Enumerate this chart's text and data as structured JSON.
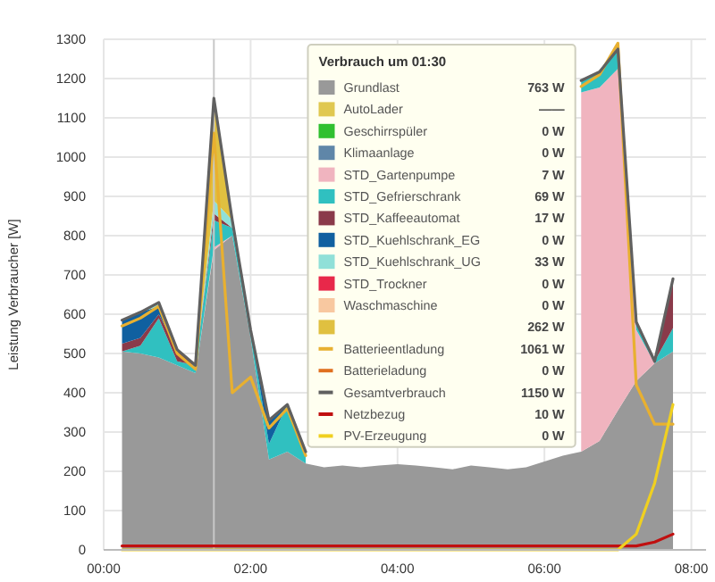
{
  "chart_data": {
    "type": "area",
    "stacked": true,
    "ylabel": "Leistung Verbraucher [W]",
    "x": [
      0.25,
      0.5,
      0.75,
      1,
      1.25,
      1.5,
      1.75,
      2,
      2.25,
      2.5,
      2.75,
      3,
      3.25,
      3.5,
      3.75,
      4,
      4.25,
      4.5,
      4.75,
      5,
      5.25,
      5.5,
      5.75,
      6,
      6.25,
      6.5,
      6.75,
      7,
      7.25,
      7.5,
      7.75
    ],
    "xlim": [
      0,
      8.2
    ],
    "xticks": [
      {
        "value": 0,
        "label": "00:00"
      },
      {
        "value": 2,
        "label": "02:00"
      },
      {
        "value": 4,
        "label": "04:00"
      },
      {
        "value": 6,
        "label": "06:00"
      },
      {
        "value": 8,
        "label": "08:00"
      }
    ],
    "ylim": [
      0,
      1300
    ],
    "yticks": [
      0,
      100,
      200,
      300,
      400,
      500,
      600,
      700,
      800,
      900,
      1000,
      1100,
      1200,
      1300
    ],
    "grid": true,
    "legend": "top right",
    "legend_title": "Verbrauch um 01:30",
    "ref_lines": [
      {
        "axis": "x",
        "value": 1.5,
        "color": "#c8c8c8"
      }
    ],
    "annotations": [
      "763 W",
      "——",
      "0 W",
      "0 W",
      "7 W",
      "69 W",
      "17 W",
      "0 W",
      "33 W",
      "0 W",
      "0 W",
      "262 W",
      "1061 W",
      "0 W",
      "1150 W",
      "10 W",
      "0 W"
    ],
    "series": [
      {
        "name": "Grundlast",
        "type": "area",
        "color": "#999999",
        "values": [
          505,
          500,
          490,
          470,
          450,
          763,
          800,
          540,
          230,
          250,
          220,
          210,
          215,
          210,
          215,
          218,
          215,
          210,
          205,
          215,
          210,
          205,
          210,
          225,
          240,
          250,
          277,
          355,
          430,
          475,
          505
        ]
      },
      {
        "name": "AutoLader",
        "type": "area",
        "color": "#e0c850",
        "values": [
          null,
          null,
          null,
          null,
          null,
          null,
          null,
          null,
          null,
          null,
          null,
          null,
          null,
          null,
          null,
          null,
          null,
          null,
          null,
          null,
          null,
          null,
          null,
          null,
          null,
          null,
          null,
          null,
          null,
          null,
          null
        ]
      },
      {
        "name": "Geschirrspüler",
        "type": "area",
        "color": "#30c030",
        "values": [
          null,
          null,
          null,
          null,
          null,
          null,
          null,
          null,
          null,
          null,
          null,
          null,
          null,
          null,
          null,
          null,
          null,
          null,
          null,
          null,
          null,
          null,
          null,
          null,
          null,
          null,
          null,
          null,
          null,
          null,
          null
        ]
      },
      {
        "name": "Klimaanlage",
        "type": "area",
        "color": "#5f86a8",
        "values": [
          null,
          null,
          null,
          null,
          null,
          null,
          null,
          null,
          null,
          null,
          null,
          null,
          null,
          null,
          null,
          null,
          null,
          null,
          null,
          null,
          null,
          null,
          null,
          null,
          null,
          null,
          null,
          null,
          null,
          null,
          null
        ]
      },
      {
        "name": "STD_Gartenpumpe",
        "type": "area",
        "color": "#f0b4bf",
        "values": [
          null,
          null,
          null,
          null,
          0,
          7,
          0,
          null,
          null,
          null,
          null,
          null,
          null,
          null,
          null,
          null,
          null,
          null,
          null,
          null,
          null,
          null,
          null,
          null,
          null,
          915,
          900,
          870,
          130,
          0,
          null
        ]
      },
      {
        "name": "STD_Gefrierschrank",
        "type": "area",
        "color": "#30c0c0",
        "values": [
          0,
          20,
          100,
          10,
          20,
          69,
          20,
          20,
          40,
          120,
          30,
          null,
          null,
          null,
          null,
          null,
          null,
          null,
          null,
          null,
          null,
          null,
          null,
          null,
          null,
          30,
          40,
          50,
          20,
          5,
          60
        ]
      },
      {
        "name": "STD_Kaffeeautomat",
        "type": "area",
        "color": "#8a3a4a",
        "values": [
          20,
          20,
          10,
          30,
          0,
          17,
          0,
          null,
          null,
          null,
          null,
          null,
          null,
          null,
          null,
          null,
          null,
          null,
          null,
          null,
          null,
          null,
          null,
          null,
          null,
          null,
          null,
          null,
          null,
          0,
          125
        ]
      },
      {
        "name": "STD_Kuehlschrank_EG",
        "type": "area",
        "color": "#1060a0",
        "values": [
          60,
          65,
          20,
          0,
          null,
          null,
          null,
          0,
          60,
          0,
          null,
          null,
          null,
          null,
          null,
          null,
          null,
          null,
          null,
          null,
          null,
          null,
          null,
          null,
          null,
          null,
          null,
          null,
          null,
          null,
          null
        ]
      },
      {
        "name": "STD_Kuehlschrank_UG",
        "type": "area",
        "color": "#90e0d8",
        "values": [
          null,
          0,
          10,
          0,
          0,
          33,
          20,
          0,
          null,
          null,
          null,
          null,
          null,
          null,
          null,
          null,
          null,
          null,
          null,
          null,
          null,
          null,
          null,
          null,
          null,
          null,
          null,
          null,
          null,
          null,
          null
        ]
      },
      {
        "name": "STD_Trockner",
        "type": "area",
        "color": "#e8284a",
        "values": [
          null,
          null,
          null,
          null,
          null,
          null,
          null,
          null,
          null,
          null,
          null,
          null,
          null,
          null,
          null,
          null,
          null,
          null,
          null,
          null,
          null,
          null,
          null,
          null,
          null,
          null,
          null,
          null,
          null,
          null,
          null
        ]
      },
      {
        "name": "Waschmaschine",
        "type": "area",
        "color": "#f8c8a0",
        "values": [
          null,
          null,
          null,
          null,
          null,
          null,
          null,
          null,
          null,
          null,
          null,
          null,
          null,
          null,
          null,
          null,
          null,
          null,
          null,
          null,
          null,
          null,
          null,
          null,
          null,
          null,
          null,
          null,
          null,
          null,
          null
        ]
      },
      {
        "type": "area",
        "color": "#e0c040",
        "values": [
          null,
          null,
          null,
          null,
          0,
          262,
          0,
          null,
          null,
          null,
          null,
          null,
          null,
          null,
          null,
          null,
          null,
          null,
          null,
          null,
          null,
          null,
          null,
          null,
          null,
          null,
          null,
          null,
          null,
          null,
          null
        ]
      },
      {
        "name": "Batterieentladung",
        "type": "line",
        "color": "#e8b030",
        "values": [
          570,
          590,
          620,
          500,
          460,
          1061,
          400,
          440,
          310,
          360,
          240,
          null,
          null,
          null,
          null,
          null,
          null,
          null,
          null,
          null,
          null,
          null,
          null,
          null,
          null,
          1180,
          1210,
          1290,
          420,
          320,
          320
        ]
      },
      {
        "name": "Batterieladung",
        "type": "line",
        "color": "#e07020",
        "values": [
          null,
          null,
          null,
          null,
          null,
          null,
          null,
          null,
          null,
          null,
          null,
          null,
          null,
          null,
          null,
          null,
          null,
          null,
          null,
          null,
          null,
          null,
          null,
          null,
          null,
          null,
          null,
          null,
          null,
          null,
          null
        ]
      },
      {
        "name": "Gesamtverbrauch",
        "type": "line",
        "color": "#606060",
        "values": [
          585,
          605,
          630,
          510,
          470,
          1150,
          840,
          560,
          330,
          370,
          250,
          null,
          null,
          null,
          null,
          null,
          null,
          null,
          null,
          null,
          null,
          null,
          null,
          null,
          null,
          1195,
          1217,
          1275,
          580,
          480,
          690
        ]
      },
      {
        "name": "Netzbezug",
        "type": "line",
        "color": "#c01010",
        "values": [
          10,
          10,
          10,
          10,
          10,
          10,
          10,
          10,
          10,
          10,
          10,
          10,
          10,
          10,
          10,
          10,
          10,
          10,
          10,
          10,
          10,
          10,
          10,
          10,
          10,
          10,
          10,
          10,
          10,
          20,
          40
        ]
      },
      {
        "name": "PV-Erzeugung",
        "type": "line",
        "color": "#f0d020",
        "values": [
          0,
          0,
          0,
          0,
          0,
          0,
          0,
          0,
          0,
          0,
          0,
          0,
          0,
          0,
          0,
          0,
          0,
          0,
          0,
          0,
          0,
          0,
          0,
          0,
          0,
          0,
          0,
          0,
          40,
          170,
          370
        ]
      }
    ]
  }
}
